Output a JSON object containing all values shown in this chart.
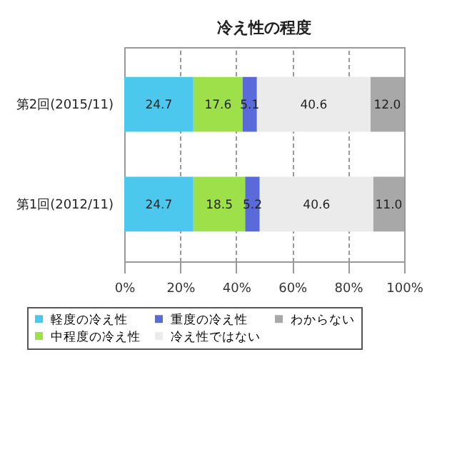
{
  "chart_data": {
    "type": "bar",
    "orientation": "horizontal",
    "stacked": true,
    "title": "冷え性の程度",
    "categories": [
      "第2回(2015/11)",
      "第1回(2012/11)"
    ],
    "series": [
      {
        "name": "軽度の冷え性",
        "color": "#4cc8ee",
        "values": [
          24.7,
          24.7
        ]
      },
      {
        "name": "中程度の冷え性",
        "color": "#9ee04a",
        "values": [
          17.6,
          18.5
        ]
      },
      {
        "name": "重度の冷え性",
        "color": "#5a6ad8",
        "values": [
          5.1,
          5.2
        ]
      },
      {
        "name": "冷え性ではない",
        "color": "#ebebeb",
        "values": [
          40.6,
          40.6
        ]
      },
      {
        "name": "わからない",
        "color": "#a8a8a8",
        "values": [
          12.0,
          11.0
        ],
        "value_labels": [
          "12.0",
          "11.0"
        ]
      }
    ],
    "xlim": [
      0,
      100
    ],
    "xticks": [
      {
        "value": 0,
        "label": "0%"
      },
      {
        "value": 20,
        "label": "20%"
      },
      {
        "value": 40,
        "label": "40%"
      },
      {
        "value": 60,
        "label": "60%"
      },
      {
        "value": 80,
        "label": "80%"
      },
      {
        "value": 100,
        "label": "100%"
      }
    ],
    "grid": "x",
    "legend": "bottom",
    "data_labels": true
  }
}
